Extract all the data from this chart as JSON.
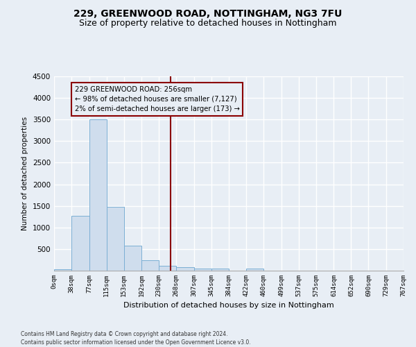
{
  "title1": "229, GREENWOOD ROAD, NOTTINGHAM, NG3 7FU",
  "title2": "Size of property relative to detached houses in Nottingham",
  "xlabel": "Distribution of detached houses by size in Nottingham",
  "ylabel": "Number of detached properties",
  "bar_values": [
    35,
    1270,
    3500,
    1480,
    575,
    235,
    110,
    80,
    50,
    50,
    0,
    50,
    0,
    0,
    0,
    0,
    0,
    0,
    0,
    0
  ],
  "bin_edges": [
    0,
    38,
    77,
    115,
    153,
    192,
    230,
    268,
    307,
    345,
    384,
    422,
    460,
    499,
    537,
    575,
    614,
    652,
    690,
    729,
    767
  ],
  "tick_labels": [
    "0sqm",
    "38sqm",
    "77sqm",
    "115sqm",
    "153sqm",
    "192sqm",
    "230sqm",
    "268sqm",
    "307sqm",
    "345sqm",
    "384sqm",
    "422sqm",
    "460sqm",
    "499sqm",
    "537sqm",
    "575sqm",
    "614sqm",
    "652sqm",
    "690sqm",
    "729sqm",
    "767sqm"
  ],
  "bar_color": "#cfdded",
  "bar_edge_color": "#7bafd4",
  "vline_x": 256,
  "vline_color": "#8b0000",
  "annotation_lines": [
    "229 GREENWOOD ROAD: 256sqm",
    "← 98% of detached houses are smaller (7,127)",
    "2% of semi-detached houses are larger (173) →"
  ],
  "annotation_box_color": "#8b0000",
  "ylim": [
    0,
    4500
  ],
  "yticks": [
    0,
    500,
    1000,
    1500,
    2000,
    2500,
    3000,
    3500,
    4000,
    4500
  ],
  "footer": "Contains HM Land Registry data © Crown copyright and database right 2024.\nContains public sector information licensed under the Open Government Licence v3.0.",
  "bg_color": "#e8eef5",
  "grid_color": "#ffffff",
  "title1_fontsize": 10,
  "title2_fontsize": 9
}
